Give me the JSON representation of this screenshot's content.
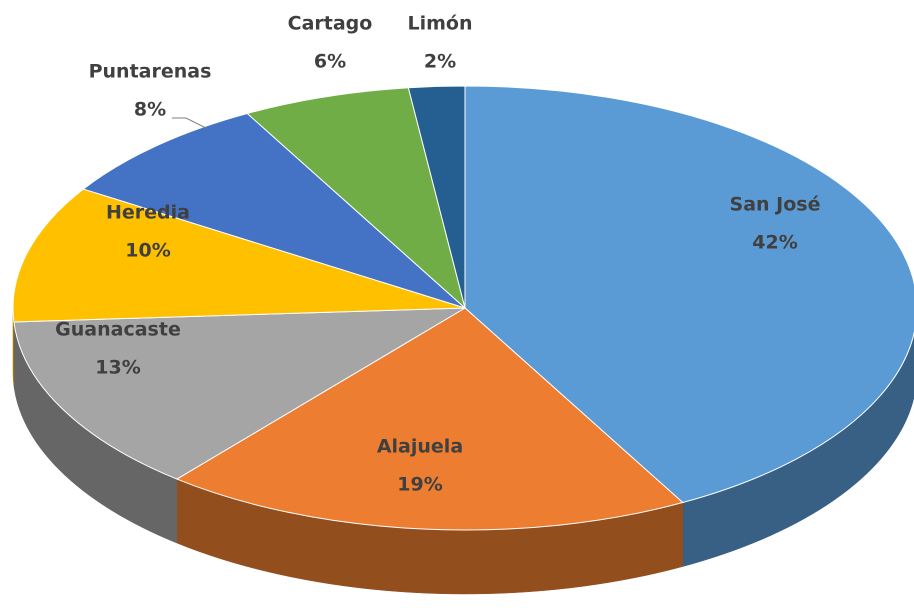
{
  "chart_data": {
    "type": "pie",
    "three_d": true,
    "categories": [
      "San José",
      "Alajuela",
      "Guanacaste",
      "Heredia",
      "Puntarenas",
      "Cartago",
      "Limón"
    ],
    "values": [
      42,
      19,
      13,
      10,
      8,
      6,
      2
    ],
    "value_labels": [
      "42%",
      "19%",
      "13%",
      "10%",
      "8%",
      "6%",
      "2%"
    ],
    "colors": [
      "#5b9bd5",
      "#ed7d31",
      "#a5a5a5",
      "#ffc000",
      "#4472c4",
      "#70ad47",
      "#255e91"
    ]
  }
}
